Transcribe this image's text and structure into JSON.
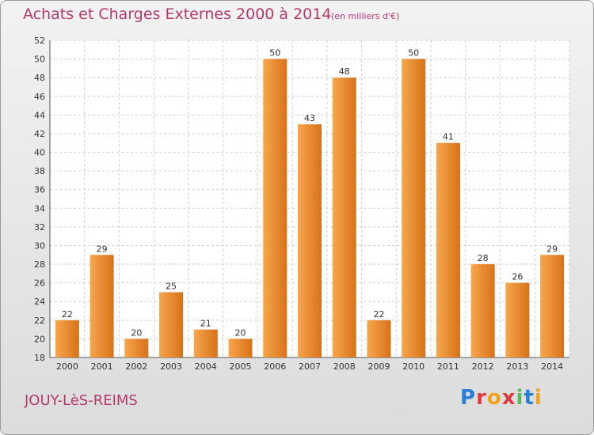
{
  "header": {
    "title": "Achats et Charges Externes 2000 à 2014",
    "subtitle": "(en milliers d'€)"
  },
  "footer": {
    "commune": "JOUY-LèS-REIMS",
    "brand": "Proxiti"
  },
  "colors": {
    "bar_light": "#f7a64e",
    "bar_dark": "#d77219",
    "text_accent": "#b43a6e"
  },
  "chart_data": {
    "type": "bar",
    "title": "Achats et Charges Externes 2000 à 2014",
    "subtitle": "(en milliers d'€)",
    "categories": [
      "2000",
      "2001",
      "2002",
      "2003",
      "2004",
      "2005",
      "2006",
      "2007",
      "2008",
      "2009",
      "2010",
      "2011",
      "2012",
      "2013",
      "2014"
    ],
    "values": [
      22,
      29,
      20,
      25,
      21,
      20,
      50,
      43,
      48,
      22,
      50,
      41,
      28,
      26,
      29
    ],
    "ylim": [
      18,
      52
    ],
    "yticks": [
      18,
      20,
      22,
      24,
      26,
      28,
      30,
      32,
      34,
      36,
      38,
      40,
      42,
      44,
      46,
      48,
      50,
      52
    ],
    "grid": true,
    "xlabel": "",
    "ylabel": ""
  }
}
